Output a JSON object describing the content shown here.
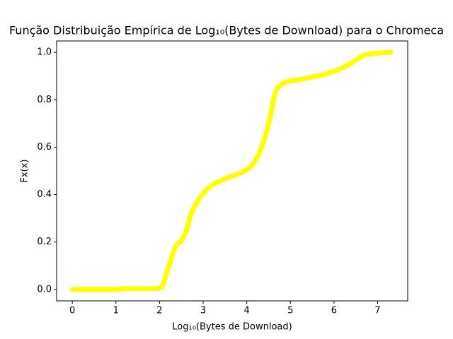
{
  "chart_data": {
    "type": "line",
    "title": "Função Distribuição Empírica de Log₁₀(Bytes de Download) para o Chromeca",
    "xlabel": "Log₁₀(Bytes de Download)",
    "ylabel": "Fx(x)",
    "color": "#ffff00",
    "grid": false,
    "xlim": [
      -0.36,
      7.69
    ],
    "ylim": [
      -0.048,
      1.048
    ],
    "xticks": [
      0,
      1,
      2,
      3,
      4,
      5,
      6,
      7
    ],
    "yticks": [
      {
        "value": 0,
        "label": "0.0"
      },
      0.2,
      0.4,
      0.6,
      0.8,
      {
        "value": 1,
        "label": "1.0"
      }
    ],
    "x": [
      0,
      0.15,
      0.3,
      0.45,
      0.6,
      0.7,
      0.8,
      0.9,
      1.0,
      1.1,
      1.2,
      1.4,
      1.6,
      1.8,
      1.95,
      2.05,
      2.1,
      2.15,
      2.2,
      2.25,
      2.3,
      2.35,
      2.4,
      2.5,
      2.55,
      2.6,
      2.65,
      2.7,
      2.8,
      2.9,
      3.0,
      3.1,
      3.2,
      3.3,
      3.4,
      3.5,
      3.6,
      3.7,
      3.8,
      3.9,
      4.0,
      4.1,
      4.2,
      4.3,
      4.4,
      4.5,
      4.55,
      4.6,
      4.65,
      4.7,
      4.8,
      4.9,
      5.0,
      5.2,
      5.4,
      5.6,
      5.8,
      6.0,
      6.2,
      6.4,
      6.6,
      6.7,
      6.9,
      7.1,
      7.3
    ],
    "values": [
      0,
      0,
      0,
      0,
      0,
      0,
      0,
      0,
      0,
      0.002,
      0.003,
      0.003,
      0.003,
      0.003,
      0.004,
      0.01,
      0.03,
      0.06,
      0.09,
      0.12,
      0.15,
      0.175,
      0.19,
      0.205,
      0.22,
      0.24,
      0.27,
      0.31,
      0.35,
      0.38,
      0.405,
      0.425,
      0.44,
      0.45,
      0.458,
      0.467,
      0.475,
      0.48,
      0.487,
      0.495,
      0.505,
      0.52,
      0.545,
      0.58,
      0.63,
      0.7,
      0.74,
      0.79,
      0.83,
      0.85,
      0.865,
      0.875,
      0.88,
      0.885,
      0.892,
      0.9,
      0.908,
      0.92,
      0.935,
      0.955,
      0.98,
      0.99,
      0.995,
      0.998,
      1.0
    ]
  }
}
